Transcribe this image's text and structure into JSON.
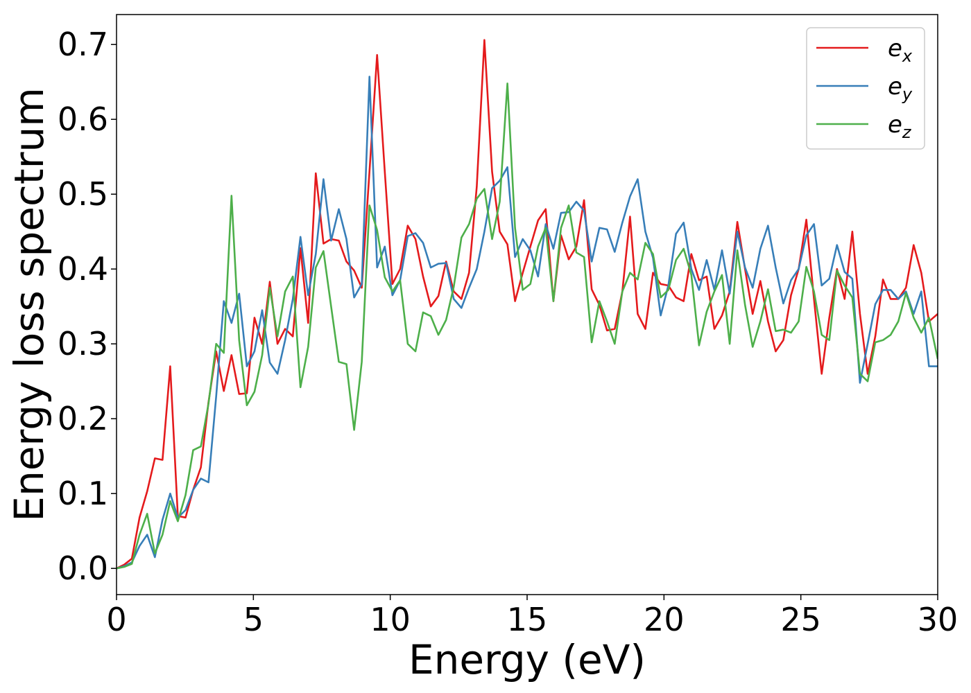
{
  "chart_data": {
    "type": "line",
    "title": "",
    "xlabel": "Energy (eV)",
    "ylabel": "Energy loss spectrum",
    "xlim": [
      0,
      30
    ],
    "ylim": [
      -0.035,
      0.74
    ],
    "xticks": [
      0,
      5,
      10,
      15,
      20,
      25,
      30
    ],
    "xtick_labels": [
      "0",
      "5",
      "10",
      "15",
      "20",
      "25",
      "30"
    ],
    "yticks": [
      0.0,
      0.1,
      0.2,
      0.3,
      0.4,
      0.5,
      0.6,
      0.7
    ],
    "ytick_labels": [
      "0.0",
      "0.1",
      "0.2",
      "0.3",
      "0.4",
      "0.5",
      "0.6",
      "0.7"
    ],
    "grid": false,
    "legend_position": "top-right",
    "series": [
      {
        "name": "e_x",
        "label_base": "e",
        "label_sub": "x",
        "color": "#e41a1c",
        "x": [
          0,
          0.28,
          0.56,
          0.84,
          1.12,
          1.4,
          1.68,
          1.96,
          2.24,
          2.52,
          2.8,
          3.08,
          3.36,
          3.64,
          3.92,
          4.2,
          4.48,
          4.76,
          5.04,
          5.32,
          5.6,
          5.88,
          6.16,
          6.44,
          6.72,
          7.0,
          7.28,
          7.56,
          7.84,
          8.12,
          8.4,
          8.68,
          8.96,
          9.24,
          9.52,
          9.8,
          10.08,
          10.36,
          10.64,
          10.92,
          11.2,
          11.48,
          11.76,
          12.04,
          12.32,
          12.6,
          12.88,
          13.16,
          13.44,
          13.72,
          14.0,
          14.28,
          14.56,
          14.84,
          15.12,
          15.4,
          15.68,
          15.96,
          16.24,
          16.52,
          16.8,
          17.08,
          17.36,
          17.64,
          17.92,
          18.2,
          18.48,
          18.76,
          19.04,
          19.32,
          19.6,
          19.88,
          20.16,
          20.44,
          20.72,
          21.0,
          21.28,
          21.56,
          21.84,
          22.12,
          22.4,
          22.68,
          22.96,
          23.24,
          23.52,
          23.8,
          24.08,
          24.36,
          24.64,
          24.92,
          25.2,
          25.48,
          25.76,
          26.04,
          26.32,
          26.6,
          26.88,
          27.16,
          27.44,
          27.72,
          28.0,
          28.28,
          28.56,
          28.84,
          29.12,
          29.4,
          29.68,
          30.0
        ],
        "y": [
          0.0,
          0.005,
          0.013,
          0.068,
          0.103,
          0.147,
          0.145,
          0.27,
          0.07,
          0.068,
          0.105,
          0.135,
          0.222,
          0.29,
          0.237,
          0.285,
          0.233,
          0.234,
          0.335,
          0.3,
          0.383,
          0.3,
          0.32,
          0.31,
          0.428,
          0.328,
          0.528,
          0.434,
          0.44,
          0.438,
          0.41,
          0.398,
          0.375,
          0.53,
          0.686,
          0.53,
          0.38,
          0.4,
          0.458,
          0.44,
          0.39,
          0.35,
          0.364,
          0.41,
          0.37,
          0.36,
          0.395,
          0.51,
          0.706,
          0.53,
          0.45,
          0.433,
          0.357,
          0.395,
          0.43,
          0.465,
          0.48,
          0.357,
          0.445,
          0.413,
          0.43,
          0.492,
          0.373,
          0.352,
          0.318,
          0.32,
          0.37,
          0.47,
          0.34,
          0.32,
          0.395,
          0.38,
          0.378,
          0.362,
          0.357,
          0.42,
          0.385,
          0.39,
          0.32,
          0.338,
          0.37,
          0.463,
          0.4,
          0.34,
          0.384,
          0.33,
          0.29,
          0.305,
          0.365,
          0.4,
          0.466,
          0.36,
          0.26,
          0.335,
          0.4,
          0.36,
          0.45,
          0.34,
          0.26,
          0.31,
          0.386,
          0.36,
          0.36,
          0.375,
          0.432,
          0.395,
          0.33,
          0.34
        ]
      },
      {
        "name": "e_y",
        "label_base": "e",
        "label_sub": "y",
        "color": "#377eb8",
        "x": [
          0,
          0.28,
          0.56,
          0.84,
          1.12,
          1.4,
          1.68,
          1.96,
          2.24,
          2.52,
          2.8,
          3.08,
          3.36,
          3.64,
          3.92,
          4.2,
          4.48,
          4.76,
          5.04,
          5.32,
          5.6,
          5.88,
          6.16,
          6.44,
          6.72,
          7.0,
          7.28,
          7.56,
          7.84,
          8.12,
          8.4,
          8.68,
          8.96,
          9.24,
          9.52,
          9.8,
          10.08,
          10.36,
          10.64,
          10.92,
          11.2,
          11.48,
          11.76,
          12.04,
          12.32,
          12.6,
          12.88,
          13.16,
          13.44,
          13.72,
          14.0,
          14.28,
          14.56,
          14.84,
          15.12,
          15.4,
          15.68,
          15.96,
          16.24,
          16.52,
          16.8,
          17.08,
          17.36,
          17.64,
          17.92,
          18.2,
          18.48,
          18.76,
          19.04,
          19.32,
          19.6,
          19.88,
          20.16,
          20.44,
          20.72,
          21.0,
          21.28,
          21.56,
          21.84,
          22.12,
          22.4,
          22.68,
          22.96,
          23.24,
          23.52,
          23.8,
          24.08,
          24.36,
          24.64,
          24.92,
          25.2,
          25.48,
          25.76,
          26.04,
          26.32,
          26.6,
          26.88,
          27.16,
          27.44,
          27.72,
          28.0,
          28.28,
          28.56,
          28.84,
          29.12,
          29.4,
          29.68,
          30.0
        ],
        "y": [
          0.0,
          0.003,
          0.008,
          0.03,
          0.045,
          0.015,
          0.065,
          0.1,
          0.068,
          0.078,
          0.105,
          0.12,
          0.115,
          0.23,
          0.357,
          0.328,
          0.367,
          0.27,
          0.29,
          0.345,
          0.275,
          0.26,
          0.305,
          0.36,
          0.443,
          0.365,
          0.42,
          0.52,
          0.438,
          0.48,
          0.44,
          0.362,
          0.38,
          0.657,
          0.402,
          0.43,
          0.365,
          0.385,
          0.444,
          0.448,
          0.435,
          0.402,
          0.407,
          0.408,
          0.36,
          0.348,
          0.375,
          0.4,
          0.45,
          0.508,
          0.518,
          0.536,
          0.416,
          0.44,
          0.425,
          0.39,
          0.46,
          0.427,
          0.475,
          0.476,
          0.49,
          0.478,
          0.41,
          0.455,
          0.453,
          0.423,
          0.462,
          0.497,
          0.52,
          0.45,
          0.415,
          0.338,
          0.378,
          0.447,
          0.462,
          0.4,
          0.372,
          0.412,
          0.372,
          0.425,
          0.367,
          0.45,
          0.402,
          0.375,
          0.427,
          0.458,
          0.402,
          0.354,
          0.385,
          0.4,
          0.445,
          0.46,
          0.378,
          0.387,
          0.432,
          0.396,
          0.387,
          0.248,
          0.3,
          0.353,
          0.372,
          0.372,
          0.36,
          0.37,
          0.34,
          0.37,
          0.27,
          0.27
        ]
      },
      {
        "name": "e_z",
        "label_base": "e",
        "label_sub": "z",
        "color": "#4daf4a",
        "x": [
          0,
          0.28,
          0.56,
          0.84,
          1.12,
          1.4,
          1.68,
          1.96,
          2.24,
          2.52,
          2.8,
          3.08,
          3.36,
          3.64,
          3.92,
          4.2,
          4.48,
          4.76,
          5.04,
          5.32,
          5.6,
          5.88,
          6.16,
          6.44,
          6.72,
          7.0,
          7.28,
          7.56,
          7.84,
          8.12,
          8.4,
          8.68,
          8.96,
          9.24,
          9.52,
          9.8,
          10.08,
          10.36,
          10.64,
          10.92,
          11.2,
          11.48,
          11.76,
          12.04,
          12.32,
          12.6,
          12.88,
          13.16,
          13.44,
          13.72,
          14.0,
          14.28,
          14.56,
          14.84,
          15.12,
          15.4,
          15.68,
          15.96,
          16.24,
          16.52,
          16.8,
          17.08,
          17.36,
          17.64,
          17.92,
          18.2,
          18.48,
          18.76,
          19.04,
          19.32,
          19.6,
          19.88,
          20.16,
          20.44,
          20.72,
          21.0,
          21.28,
          21.56,
          21.84,
          22.12,
          22.4,
          22.68,
          22.96,
          23.24,
          23.52,
          23.8,
          24.08,
          24.36,
          24.64,
          24.92,
          25.2,
          25.48,
          25.76,
          26.04,
          26.32,
          26.6,
          26.88,
          27.16,
          27.44,
          27.72,
          28.0,
          28.28,
          28.56,
          28.84,
          29.12,
          29.4,
          29.68,
          30.0
        ],
        "y": [
          0.0,
          0.002,
          0.006,
          0.045,
          0.073,
          0.02,
          0.045,
          0.09,
          0.063,
          0.098,
          0.158,
          0.163,
          0.22,
          0.3,
          0.288,
          0.498,
          0.305,
          0.218,
          0.236,
          0.285,
          0.375,
          0.31,
          0.37,
          0.39,
          0.242,
          0.296,
          0.402,
          0.424,
          0.35,
          0.276,
          0.273,
          0.185,
          0.276,
          0.485,
          0.452,
          0.389,
          0.37,
          0.385,
          0.3,
          0.29,
          0.342,
          0.337,
          0.312,
          0.332,
          0.376,
          0.442,
          0.46,
          0.494,
          0.507,
          0.44,
          0.49,
          0.648,
          0.455,
          0.372,
          0.38,
          0.43,
          0.455,
          0.357,
          0.455,
          0.485,
          0.422,
          0.416,
          0.302,
          0.357,
          0.33,
          0.3,
          0.37,
          0.395,
          0.386,
          0.435,
          0.42,
          0.362,
          0.372,
          0.412,
          0.427,
          0.392,
          0.298,
          0.343,
          0.37,
          0.392,
          0.3,
          0.425,
          0.352,
          0.296,
          0.33,
          0.373,
          0.317,
          0.319,
          0.315,
          0.33,
          0.403,
          0.37,
          0.312,
          0.305,
          0.398,
          0.378,
          0.362,
          0.26,
          0.25,
          0.302,
          0.305,
          0.312,
          0.33,
          0.368,
          0.335,
          0.315,
          0.335,
          0.28
        ]
      }
    ]
  }
}
